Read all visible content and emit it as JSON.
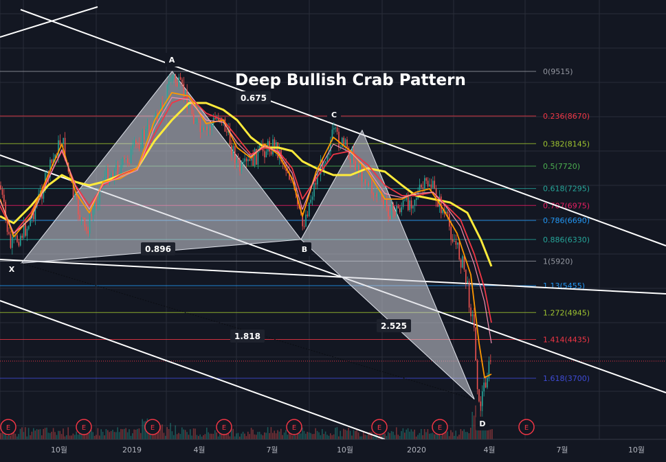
{
  "chart_data": {
    "type": "line",
    "title": "Deep Bullish Crab Pattern",
    "x_ticks": [
      "10월",
      "2019",
      "4월",
      "7월",
      "10월",
      "2020",
      "4월",
      "7월",
      "10월"
    ],
    "fib_levels": [
      {
        "label": "0(9515)",
        "price": 9515,
        "color": "#9598a1"
      },
      {
        "label": "0.236(8670)",
        "price": 8670,
        "color": "#f23645"
      },
      {
        "label": "0.382(8145)",
        "price": 8145,
        "color": "#9fc430"
      },
      {
        "label": "0.5(7720)",
        "price": 7720,
        "color": "#4caf50"
      },
      {
        "label": "0.618(7295)",
        "price": 7295,
        "color": "#26a69a"
      },
      {
        "label": "0.707(6975)",
        "price": 6975,
        "color": "#e91e63"
      },
      {
        "label": "0.786(6690)",
        "price": 6690,
        "color": "#2196f3"
      },
      {
        "label": "0.886(6330)",
        "price": 6330,
        "color": "#26a69a"
      },
      {
        "label": "1(5920)",
        "price": 5920,
        "color": "#9598a1"
      },
      {
        "label": "1.13(5455)",
        "price": 5455,
        "color": "#2196f3"
      },
      {
        "label": "1.272(4945)",
        "price": 4945,
        "color": "#9fc430"
      },
      {
        "label": "1.414(4435)",
        "price": 4435,
        "color": "#f23645"
      },
      {
        "label": "1.618(3700)",
        "price": 3700,
        "color": "#3f4bd6"
      }
    ],
    "pattern_points": [
      {
        "label": "X",
        "date": "2018-08-14",
        "price": 5880
      },
      {
        "label": "A",
        "date": "2019-02-22",
        "price": 9515
      },
      {
        "label": "B",
        "date": "2019-08-05",
        "price": 6330
      },
      {
        "label": "C",
        "date": "2019-10-22",
        "price": 8400
      },
      {
        "label": "D",
        "date": "2020-03-13",
        "price": 3300
      }
    ],
    "ratios": [
      {
        "label": "0.675",
        "between": "XA-B"
      },
      {
        "label": "0.896",
        "between": "XA-B"
      },
      {
        "label": "2.525",
        "between": "BC-D"
      },
      {
        "label": "1.818",
        "between": "XA-D"
      }
    ],
    "events_label": "E"
  }
}
